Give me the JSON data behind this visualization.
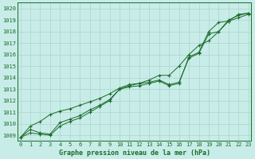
{
  "title": "Graphe pression niveau de la mer (hPa)",
  "background_color": "#c8ece8",
  "grid_color": "#b0d8d0",
  "line_color": "#1a6b2a",
  "xlim": [
    -0.3,
    23.3
  ],
  "ylim": [
    1008.5,
    1020.5
  ],
  "yticks": [
    1009,
    1010,
    1011,
    1012,
    1013,
    1014,
    1015,
    1016,
    1017,
    1018,
    1019,
    1020
  ],
  "xticks": [
    0,
    1,
    2,
    3,
    4,
    5,
    6,
    7,
    8,
    9,
    10,
    11,
    12,
    13,
    14,
    15,
    16,
    17,
    18,
    19,
    20,
    21,
    22,
    23
  ],
  "series": [
    {
      "x": [
        0,
        1,
        2,
        3,
        4,
        5,
        6,
        7,
        8,
        9,
        10,
        11,
        12,
        13,
        14,
        15,
        16,
        17,
        18,
        19,
        20,
        21,
        22,
        23
      ],
      "y": [
        1008.8,
        1009.2,
        1009.1,
        1009.0,
        1009.8,
        1010.2,
        1010.5,
        1011.0,
        1011.5,
        1012.0,
        1013.0,
        1013.2,
        1013.3,
        1013.5,
        1013.7,
        1013.3,
        1013.5,
        1015.8,
        1016.2,
        1018.0,
        1018.8,
        1018.9,
        1019.2,
        1019.5
      ]
    },
    {
      "x": [
        0,
        1,
        2,
        3,
        4,
        5,
        6,
        7,
        8,
        9,
        10,
        11,
        12,
        13,
        14,
        15,
        16,
        17,
        18,
        19,
        20,
        21,
        22,
        23
      ],
      "y": [
        1008.8,
        1009.5,
        1009.2,
        1009.1,
        1010.1,
        1010.4,
        1010.7,
        1011.2,
        1011.6,
        1012.1,
        1013.0,
        1013.3,
        1013.5,
        1013.6,
        1013.8,
        1013.4,
        1013.6,
        1015.7,
        1016.1,
        1017.8,
        1018.0,
        1019.0,
        1019.4,
        1019.6
      ]
    },
    {
      "x": [
        0,
        1,
        2,
        3,
        4,
        5,
        6,
        7,
        8,
        9,
        10,
        11,
        12,
        13,
        14,
        15,
        16,
        17,
        18,
        19,
        20,
        21,
        22,
        23
      ],
      "y": [
        1008.8,
        1009.8,
        1010.2,
        1010.8,
        1011.1,
        1011.3,
        1011.6,
        1011.9,
        1012.2,
        1012.6,
        1013.1,
        1013.4,
        1013.5,
        1013.8,
        1014.2,
        1014.2,
        1015.0,
        1016.0,
        1016.8,
        1017.2,
        1018.0,
        1018.9,
        1019.5,
        1019.6
      ]
    }
  ],
  "tick_fontsize": 5,
  "label_fontsize": 6
}
